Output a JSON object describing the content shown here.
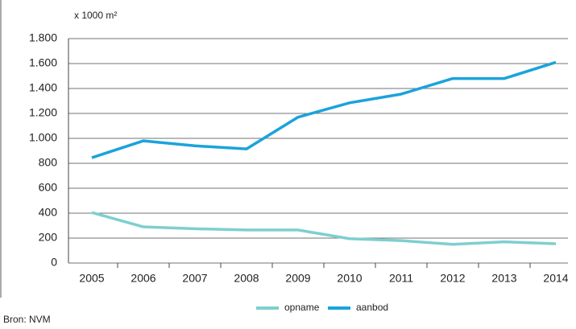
{
  "chart_data": {
    "type": "line",
    "y_unit": "x 1000 m²",
    "source": "Bron: NVM",
    "categories": [
      "2005",
      "2006",
      "2007",
      "2008",
      "2009",
      "2010",
      "2011",
      "2012",
      "2013",
      "2014"
    ],
    "series": [
      {
        "name": "opname",
        "color": "#7ecfd0",
        "values": [
          405,
          290,
          275,
          265,
          265,
          195,
          180,
          150,
          170,
          155
        ]
      },
      {
        "name": "aanbod",
        "color": "#1ba3dc",
        "values": [
          845,
          980,
          940,
          915,
          1170,
          1285,
          1355,
          1480,
          1480,
          1610
        ]
      }
    ],
    "ylim": [
      0,
      1800
    ],
    "yticks": [
      0,
      200,
      400,
      600,
      800,
      {
        "value": 1000,
        "label": "1.000"
      },
      {
        "value": 1200,
        "label": "1.200"
      },
      {
        "value": 1400,
        "label": "1.400"
      },
      {
        "value": 1600,
        "label": "1.600"
      },
      {
        "value": 1800,
        "label": "1.800"
      }
    ],
    "grid": true
  }
}
